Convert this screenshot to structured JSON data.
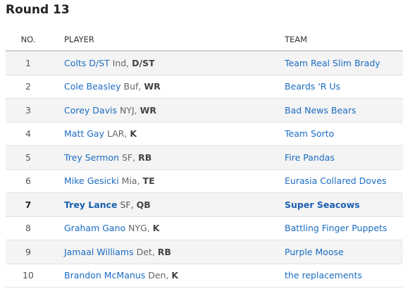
{
  "round_title": "Round 13",
  "columns": {
    "no": "NO.",
    "player": "PLAYER",
    "team": "TEAM"
  },
  "picks": [
    {
      "no": "1",
      "player": "Colts D/ST",
      "pro_team": "Ind,",
      "pos": "D/ST",
      "team": "Team Real Slim Brady"
    },
    {
      "no": "2",
      "player": "Cole Beasley",
      "pro_team": "Buf,",
      "pos": "WR",
      "team": "Beards 'R Us"
    },
    {
      "no": "3",
      "player": "Corey Davis",
      "pro_team": "NYJ,",
      "pos": "WR",
      "team": "Bad News Bears"
    },
    {
      "no": "4",
      "player": "Matt Gay",
      "pro_team": "LAR,",
      "pos": "K",
      "team": "Team Sorto"
    },
    {
      "no": "5",
      "player": "Trey Sermon",
      "pro_team": "SF,",
      "pos": "RB",
      "team": "Fire Pandas"
    },
    {
      "no": "6",
      "player": "Mike Gesicki",
      "pro_team": "Mia,",
      "pos": "TE",
      "team": "Eurasia Collared Doves"
    },
    {
      "no": "7",
      "player": "Trey Lance",
      "pro_team": "SF,",
      "pos": "QB",
      "team": "Super Seacows",
      "highlight": true
    },
    {
      "no": "8",
      "player": "Graham Gano",
      "pro_team": "NYG,",
      "pos": "K",
      "team": "Battling Finger Puppets"
    },
    {
      "no": "9",
      "player": "Jamaal Williams",
      "pro_team": "Det,",
      "pos": "RB",
      "team": "Purple Moose"
    },
    {
      "no": "10",
      "player": "Brandon McManus",
      "pro_team": "Den,",
      "pos": "K",
      "team": "the replacements"
    }
  ]
}
